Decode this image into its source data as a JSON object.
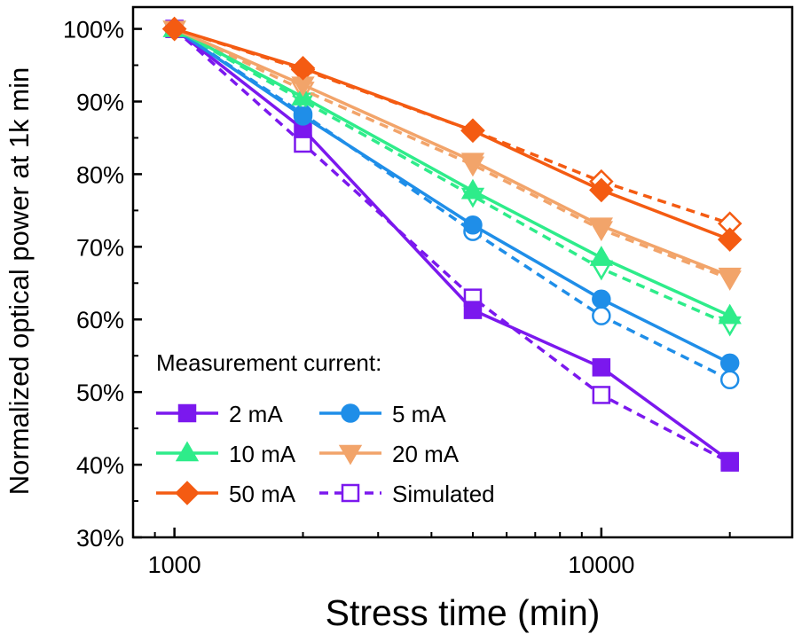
{
  "chart_data": {
    "type": "line",
    "xlabel": "Stress time (min)",
    "ylabel": "Normalized optical power at 1k min",
    "x_scale": "log",
    "xlim": [
      800,
      28000
    ],
    "ylim": [
      30,
      103
    ],
    "x_ticks": [
      1000,
      10000
    ],
    "x_tick_labels": [
      "1000",
      "10000"
    ],
    "y_ticks": [
      30,
      40,
      50,
      60,
      70,
      80,
      90,
      100
    ],
    "y_tick_labels": [
      "30%",
      "40%",
      "50%",
      "60%",
      "70%",
      "80%",
      "90%",
      "100%"
    ],
    "legend_title": "Measurement current:",
    "legend_position": "bottom-left",
    "x": [
      1000,
      2000,
      5000,
      10000,
      20000
    ],
    "series": [
      {
        "name": "2 mA",
        "kind": "measured",
        "marker": "square-filled",
        "color": "#7b18ee",
        "values": [
          100,
          86.2,
          61.3,
          53.4,
          40.5
        ]
      },
      {
        "name": "5 mA",
        "kind": "measured",
        "marker": "circle-filled",
        "color": "#1f8ee8",
        "values": [
          100,
          88,
          73,
          62.8,
          54
        ]
      },
      {
        "name": "10 mA",
        "kind": "measured",
        "marker": "triangle-up-filled",
        "color": "#2eec8a",
        "values": [
          100,
          90.6,
          77.7,
          68.5,
          60.5
        ]
      },
      {
        "name": "20 mA",
        "kind": "measured",
        "marker": "triangle-down-filled",
        "color": "#f2a46a",
        "values": [
          100,
          92.3,
          81.8,
          72.9,
          66
        ]
      },
      {
        "name": "50 mA",
        "kind": "measured",
        "marker": "diamond-filled",
        "color": "#f45b12",
        "values": [
          100,
          94.6,
          86,
          77.8,
          71
        ]
      },
      {
        "name": "Simulated",
        "kind": "simulated",
        "marker": "square-open",
        "color": "#7b18ee",
        "values": [
          100,
          84.2,
          63,
          49.6,
          40.3
        ]
      },
      {
        "kind": "simulated",
        "marker": "circle-open",
        "color": "#1f8ee8",
        "values": [
          100,
          88.3,
          72.1,
          60.5,
          51.7
        ]
      },
      {
        "kind": "simulated",
        "marker": "triangle-down-open",
        "color": "#2eec8a",
        "values": [
          100,
          90.1,
          77,
          67,
          59.3
        ]
      },
      {
        "kind": "simulated",
        "marker": "triangle-down-open",
        "color": "#f2a46a",
        "values": [
          100,
          91.6,
          81.3,
          72.4,
          65.6
        ]
      },
      {
        "kind": "simulated",
        "marker": "diamond-open",
        "color": "#f45b12",
        "values": [
          100,
          94.4,
          86,
          79,
          73.2
        ]
      }
    ],
    "legend_entries": [
      {
        "label": "2 mA",
        "marker": "square-filled",
        "color": "#7b18ee",
        "dashed": false
      },
      {
        "label": "5 mA",
        "marker": "circle-filled",
        "color": "#1f8ee8",
        "dashed": false
      },
      {
        "label": "10 mA",
        "marker": "triangle-up-filled",
        "color": "#2eec8a",
        "dashed": false
      },
      {
        "label": "20 mA",
        "marker": "triangle-down-filled",
        "color": "#f2a46a",
        "dashed": false
      },
      {
        "label": "50 mA",
        "marker": "diamond-filled",
        "color": "#f45b12",
        "dashed": false
      },
      {
        "label": "Simulated",
        "marker": "square-open",
        "color": "#7b18ee",
        "dashed": true
      }
    ]
  }
}
